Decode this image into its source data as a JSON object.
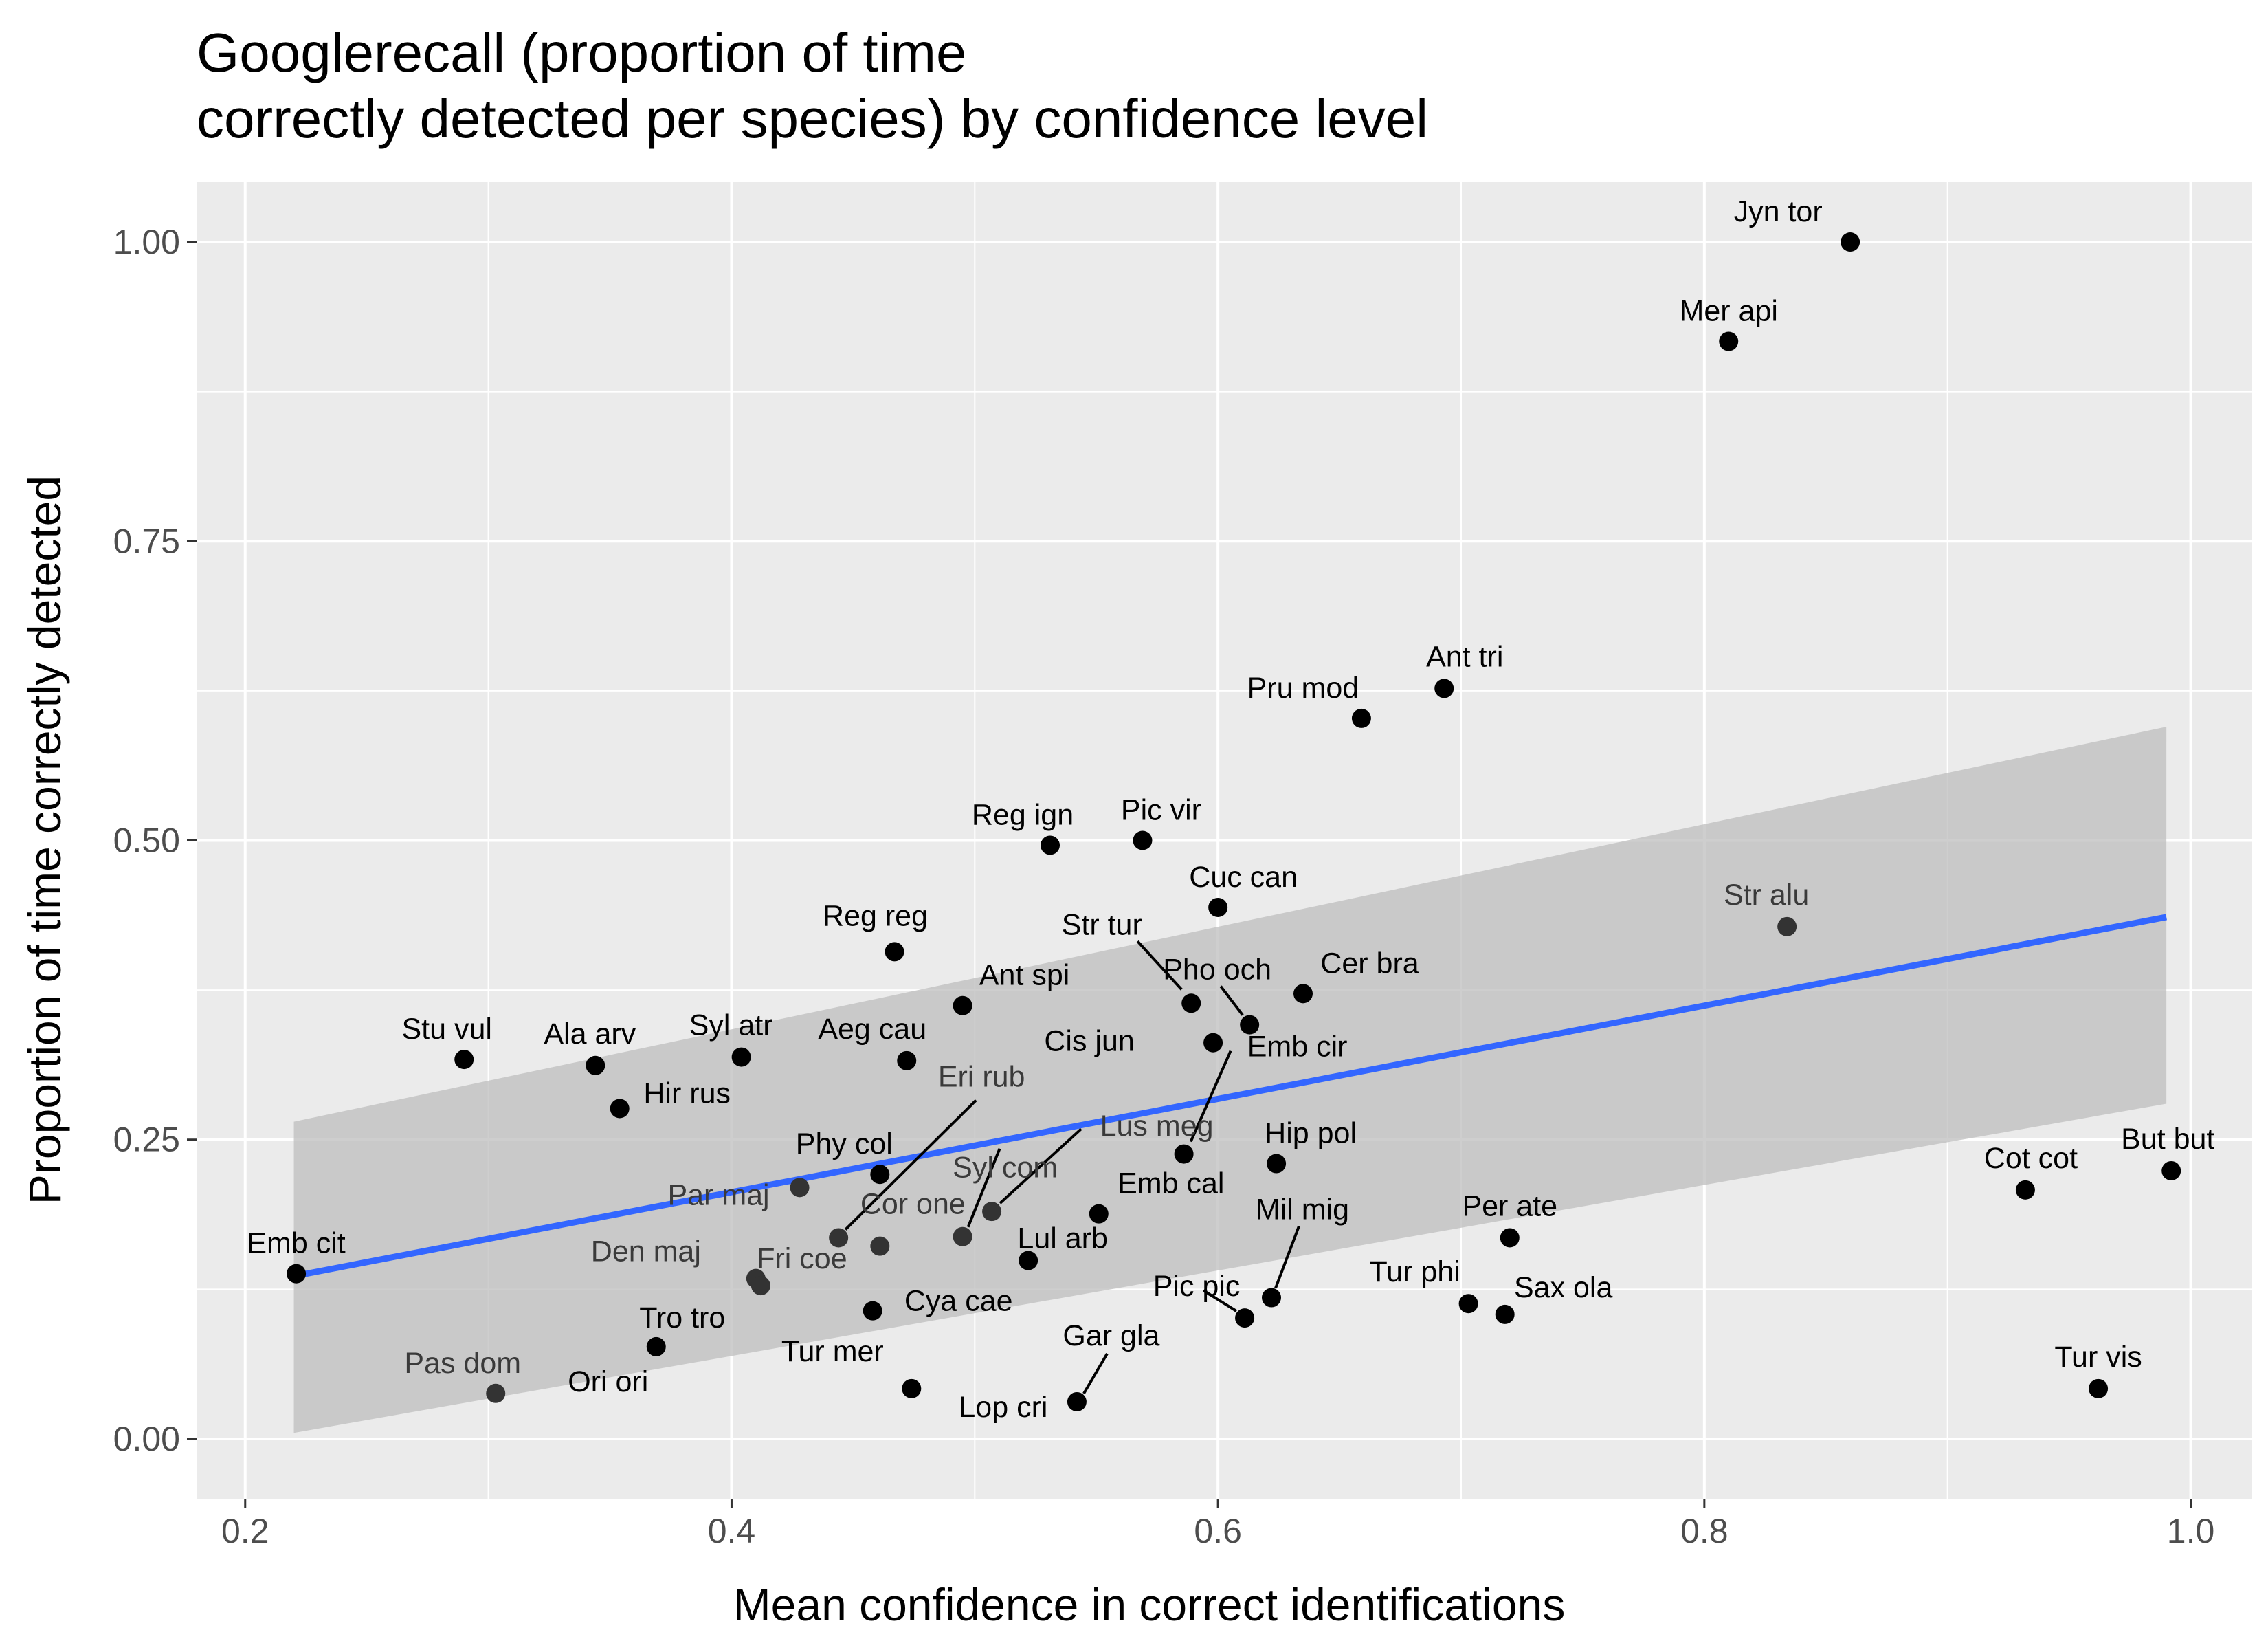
{
  "chart_data": {
    "type": "scatter",
    "title": "Googlerecall (proportion of time\ncorrectly detected per species) by confidence level",
    "title_lines": [
      "Googlerecall (proportion of time",
      "correctly detected per species) by confidence level"
    ],
    "xlabel": "Mean confidence in correct identifications",
    "ylabel": "Proportion of time correctly detected",
    "xlim": [
      0.18,
      1.025
    ],
    "ylim": [
      -0.05,
      1.05
    ],
    "x_ticks": [
      0.2,
      0.4,
      0.6,
      0.8,
      1.0
    ],
    "x_tick_labels": [
      "0.2",
      "0.4",
      "0.6",
      "0.8",
      "1.0"
    ],
    "y_ticks": [
      0.0,
      0.25,
      0.5,
      0.75,
      1.0
    ],
    "y_tick_labels": [
      "0.00",
      "0.25",
      "0.50",
      "0.75",
      "1.00"
    ],
    "grid": true,
    "colors": {
      "panel": "#ebebeb",
      "grid": "#ffffff",
      "point": "#000000",
      "point_behind": "#333333",
      "trend": "#3366ff",
      "ribbon": "#bdbdbd"
    },
    "trend": {
      "method": "lm",
      "x": [
        0.22,
        0.99
      ],
      "y": [
        0.136,
        0.436
      ],
      "ci_lower": [
        0.005,
        0.28
      ],
      "ci_upper": [
        0.265,
        0.595
      ]
    },
    "points": [
      {
        "label": "Jyn tor",
        "x": 0.86,
        "y": 1.0
      },
      {
        "label": "Mer api",
        "x": 0.81,
        "y": 0.917
      },
      {
        "label": "Ant tri",
        "x": 0.693,
        "y": 0.627
      },
      {
        "label": "Pru mod",
        "x": 0.659,
        "y": 0.602
      },
      {
        "label": "Reg ign",
        "x": 0.531,
        "y": 0.496
      },
      {
        "label": "Pic vir",
        "x": 0.569,
        "y": 0.5
      },
      {
        "label": "Cuc can",
        "x": 0.6,
        "y": 0.444
      },
      {
        "label": "Str alu",
        "x": 0.834,
        "y": 0.428
      },
      {
        "label": "Reg reg",
        "x": 0.467,
        "y": 0.407
      },
      {
        "label": "Str tur",
        "x": 0.589,
        "y": 0.364
      },
      {
        "label": "Ant spi",
        "x": 0.495,
        "y": 0.362
      },
      {
        "label": "Pho och",
        "x": 0.613,
        "y": 0.346
      },
      {
        "label": "Cer bra",
        "x": 0.635,
        "y": 0.372
      },
      {
        "label": "Cis jun",
        "x": 0.598,
        "y": 0.331
      },
      {
        "label": "Emb cir",
        "x": 0.586,
        "y": 0.238
      },
      {
        "label": "Stu vul",
        "x": 0.29,
        "y": 0.317
      },
      {
        "label": "Ala arv",
        "x": 0.344,
        "y": 0.312
      },
      {
        "label": "Syl atr",
        "x": 0.404,
        "y": 0.319
      },
      {
        "label": "Aeg cau",
        "x": 0.472,
        "y": 0.316
      },
      {
        "label": "Hir rus",
        "x": 0.354,
        "y": 0.276
      },
      {
        "label": "Eri rub",
        "x": 0.444,
        "y": 0.168
      },
      {
        "label": "Lus meg",
        "x": 0.507,
        "y": 0.19
      },
      {
        "label": "Syl com",
        "x": 0.495,
        "y": 0.169
      },
      {
        "label": "Phy col",
        "x": 0.461,
        "y": 0.221
      },
      {
        "label": "Par maj",
        "x": 0.428,
        "y": 0.21
      },
      {
        "label": "Cor one",
        "x": 0.461,
        "y": 0.161
      },
      {
        "label": "Hip pol",
        "x": 0.624,
        "y": 0.23
      },
      {
        "label": "Emb cal",
        "x": 0.551,
        "y": 0.188
      },
      {
        "label": "Mil mig",
        "x": 0.622,
        "y": 0.118
      },
      {
        "label": "Pic pic",
        "x": 0.611,
        "y": 0.101
      },
      {
        "label": "Lul arb",
        "x": 0.522,
        "y": 0.149
      },
      {
        "label": "Per ate",
        "x": 0.72,
        "y": 0.168
      },
      {
        "label": "Tur phi",
        "x": 0.703,
        "y": 0.113
      },
      {
        "label": "Sax ola",
        "x": 0.718,
        "y": 0.104
      },
      {
        "label": "Cot cot",
        "x": 0.932,
        "y": 0.208
      },
      {
        "label": "But but",
        "x": 0.992,
        "y": 0.224
      },
      {
        "label": "Tur vis",
        "x": 0.962,
        "y": 0.042
      },
      {
        "label": "Emb cit",
        "x": 0.221,
        "y": 0.138
      },
      {
        "label": "Den maj",
        "x": 0.41,
        "y": 0.134
      },
      {
        "label": "Fri coe",
        "x": 0.412,
        "y": 0.128
      },
      {
        "label": "Cya cae",
        "x": 0.458,
        "y": 0.107
      },
      {
        "label": "Tro tro",
        "x": 0.369,
        "y": 0.077
      },
      {
        "label": "Pas dom",
        "x": 0.303,
        "y": 0.038
      },
      {
        "label": "Ori ori",
        "x": 0.448,
        "y": 0.126
      },
      {
        "label": "Tur mer",
        "x": 0.474,
        "y": 0.042
      },
      {
        "label": "Gar gla",
        "x": 0.542,
        "y": 0.031
      },
      {
        "label": "Lop cri",
        "x": 0.542,
        "y": 0.031
      }
    ]
  }
}
